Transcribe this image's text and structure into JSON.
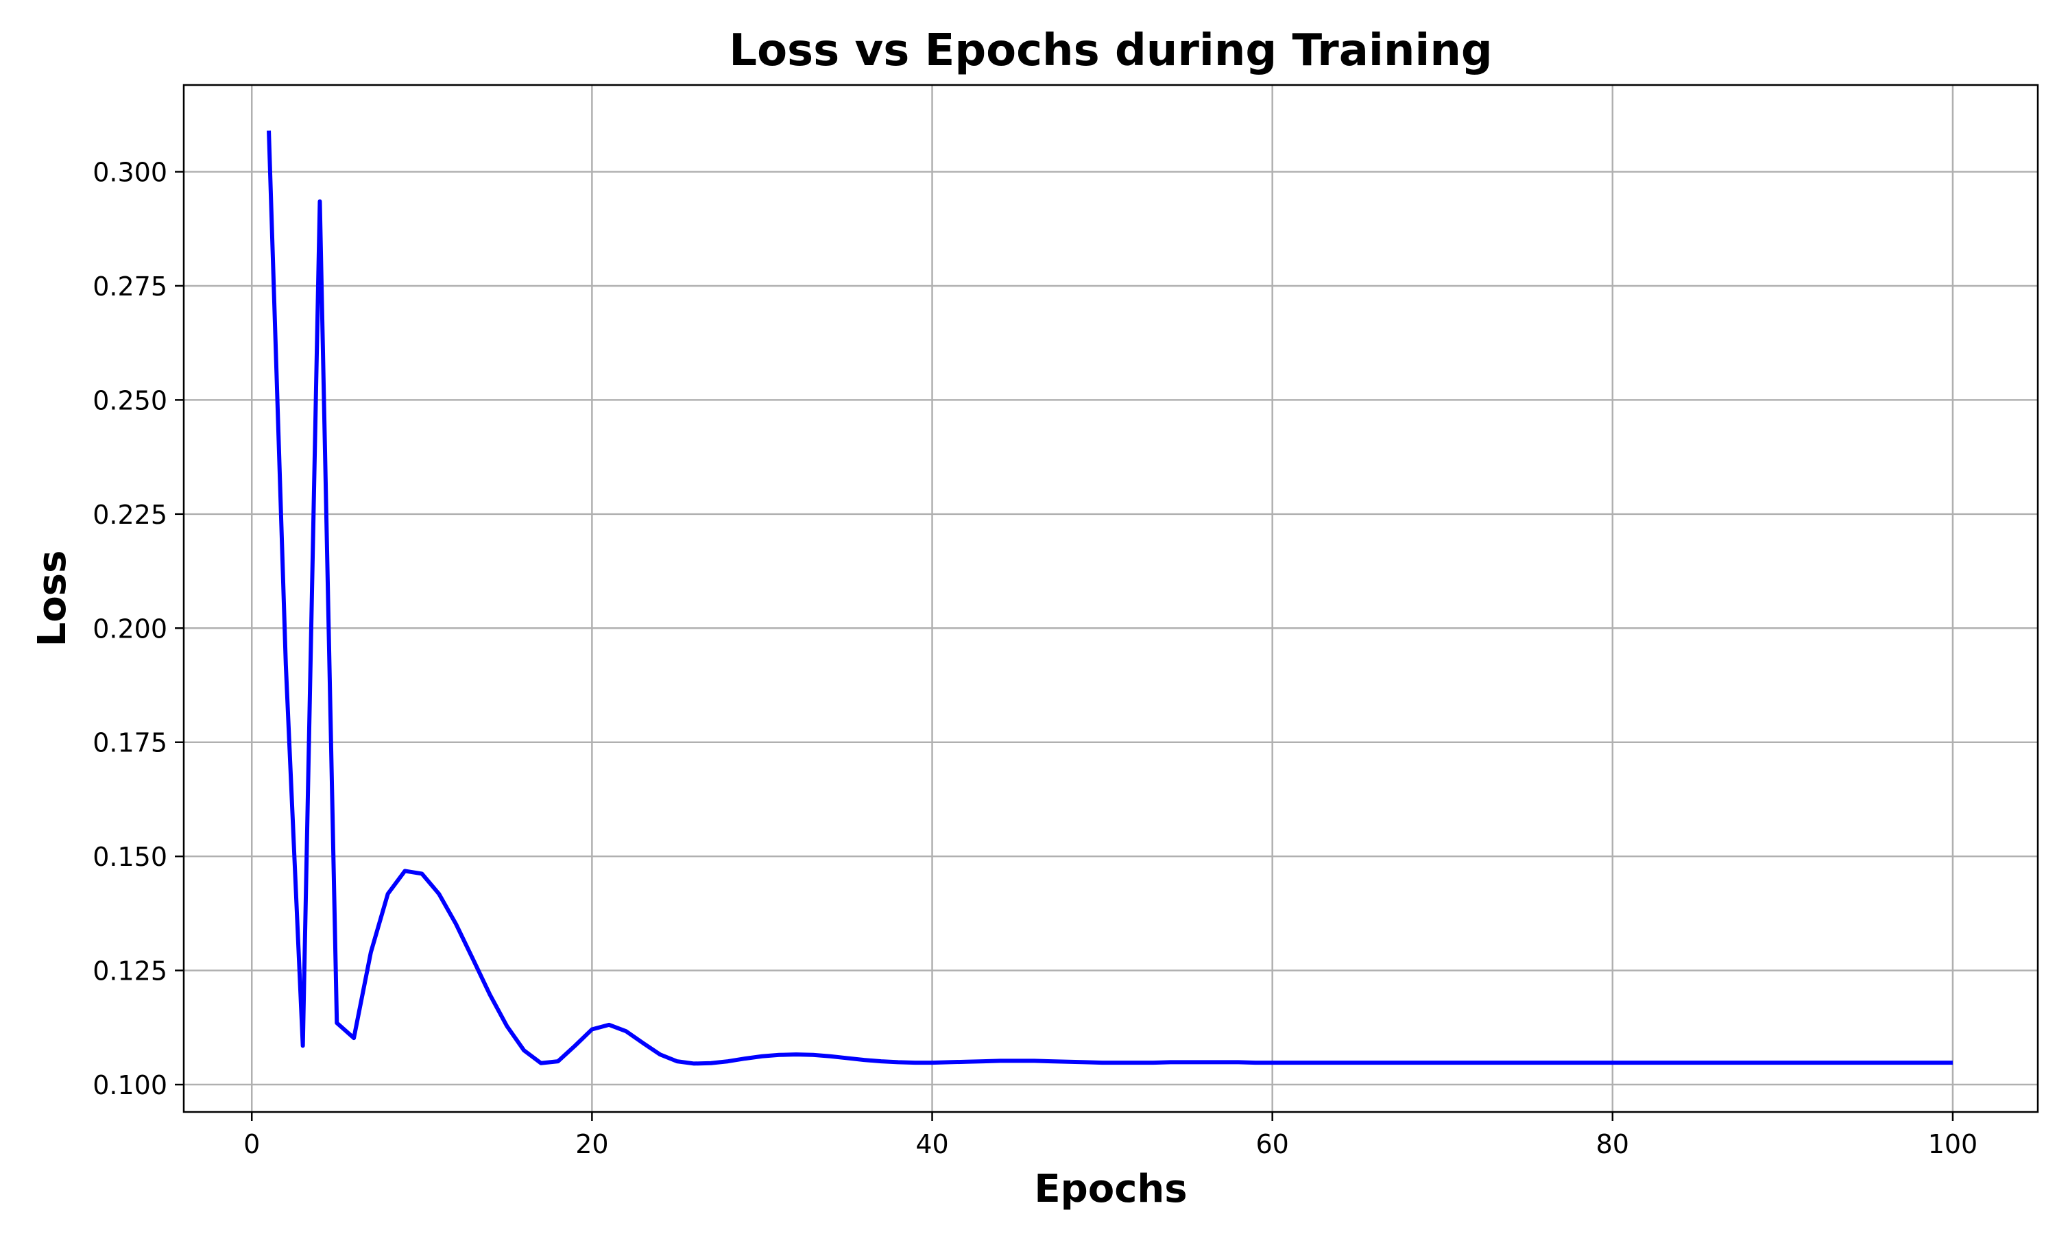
{
  "chart_data": {
    "type": "line",
    "title": "Loss vs Epochs during Training",
    "xlabel": "Epochs",
    "ylabel": "Loss",
    "xlim": [
      -4,
      105
    ],
    "ylim": [
      0.094,
      0.319
    ],
    "grid": true,
    "xticks": [
      0,
      20,
      40,
      60,
      80,
      100
    ],
    "xtick_labels": [
      "0",
      "20",
      "40",
      "60",
      "80",
      "100"
    ],
    "yticks": [
      0.1,
      0.125,
      0.15,
      0.175,
      0.2,
      0.225,
      0.25,
      0.275,
      0.3
    ],
    "ytick_labels": [
      "0.100",
      "0.125",
      "0.150",
      "0.175",
      "0.200",
      "0.225",
      "0.250",
      "0.275",
      "0.300"
    ],
    "series": [
      {
        "color": "#0000ff",
        "x": [
          1,
          2,
          3,
          4,
          5,
          6,
          7,
          8,
          9,
          10,
          11,
          12,
          13,
          14,
          15,
          16,
          17,
          18,
          19,
          20,
          21,
          22,
          23,
          24,
          25,
          26,
          27,
          28,
          29,
          30,
          31,
          32,
          33,
          34,
          35,
          36,
          37,
          38,
          39,
          40,
          41,
          42,
          43,
          44,
          45,
          46,
          47,
          48,
          49,
          50,
          51,
          52,
          53,
          54,
          55,
          56,
          57,
          58,
          59,
          60,
          61,
          62,
          63,
          64,
          65,
          66,
          67,
          68,
          69,
          70,
          71,
          72,
          73,
          74,
          75,
          76,
          77,
          78,
          79,
          80,
          81,
          82,
          83,
          84,
          85,
          86,
          87,
          88,
          89,
          90,
          91,
          92,
          93,
          94,
          95,
          96,
          97,
          98,
          99,
          100
        ],
        "y": [
          0.309,
          0.192,
          0.1085,
          0.2935,
          0.1135,
          0.1102,
          0.129,
          0.1418,
          0.1468,
          0.1462,
          0.1418,
          0.1352,
          0.1275,
          0.1197,
          0.1128,
          0.1075,
          0.1047,
          0.1051,
          0.1085,
          0.1121,
          0.1131,
          0.1117,
          0.1091,
          0.1066,
          0.1051,
          0.1046,
          0.1047,
          0.1051,
          0.1057,
          0.1062,
          0.1065,
          0.1066,
          0.1065,
          0.1062,
          0.1058,
          0.1054,
          0.1051,
          0.1049,
          0.1048,
          0.1048,
          0.1049,
          0.105,
          0.1051,
          0.1052,
          0.1052,
          0.1052,
          0.1051,
          0.105,
          0.1049,
          0.1048,
          0.1048,
          0.1048,
          0.1048,
          0.1049,
          0.1049,
          0.1049,
          0.1049,
          0.1049,
          0.1048,
          0.1048,
          0.1048,
          0.1048,
          0.1048,
          0.1048,
          0.1048,
          0.1048,
          0.1048,
          0.1048,
          0.1048,
          0.1048,
          0.1048,
          0.1048,
          0.1048,
          0.1048,
          0.1048,
          0.1048,
          0.1048,
          0.1048,
          0.1048,
          0.1048,
          0.1048,
          0.1048,
          0.1048,
          0.1048,
          0.1048,
          0.1048,
          0.1048,
          0.1048,
          0.1048,
          0.1048,
          0.1048,
          0.1048,
          0.1048,
          0.1048,
          0.1048,
          0.1048,
          0.1048,
          0.1048,
          0.1048,
          0.1048
        ]
      }
    ]
  }
}
